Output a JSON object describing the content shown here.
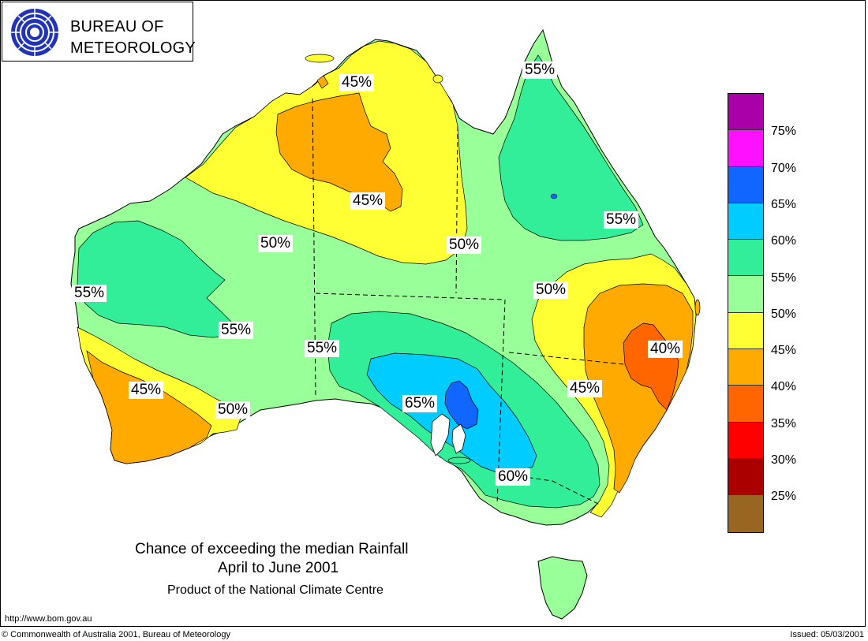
{
  "header": {
    "logo_line1": "BUREAU OF",
    "logo_line2": "METEOROLOGY",
    "logo_icon": "bom-swirl-icon"
  },
  "map": {
    "region": "Australia",
    "contour_labels": [
      "45%",
      "45%",
      "50%",
      "50%",
      "55%",
      "55%",
      "55%",
      "55%",
      "55%",
      "50%",
      "40%",
      "45%",
      "45%",
      "50%",
      "65%",
      "60%"
    ]
  },
  "legend": {
    "labels": [
      "75%",
      "70%",
      "65%",
      "60%",
      "55%",
      "50%",
      "45%",
      "40%",
      "35%",
      "30%",
      "25%"
    ],
    "colors": [
      "#aa00aa",
      "#ff11ff",
      "#1166ff",
      "#00ccff",
      "#33ee99",
      "#99ff99",
      "#ffff33",
      "#ffaa00",
      "#ff6600",
      "#ff0000",
      "#aa0000",
      "#996622"
    ]
  },
  "titles": {
    "line1": "Chance of exceeding the median Rainfall",
    "line2": "April to June 2001",
    "line3": "Product of the National Climate Centre"
  },
  "footer": {
    "url": "http://www.bom.gov.au",
    "copyright": "© Commonwealth of Australia 2001, Bureau of Meteorology",
    "issued": "Issued: 05/03/2001"
  }
}
